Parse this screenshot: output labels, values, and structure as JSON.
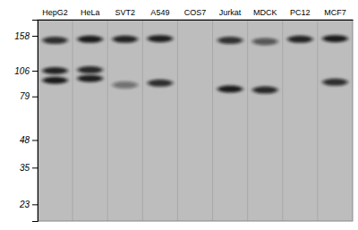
{
  "chart_data": {
    "type": "gel",
    "categories": [
      "HepG2",
      "HeLa",
      "SVT2",
      "A549",
      "COS7",
      "Jurkat",
      "MDCK",
      "PC12",
      "MCF7"
    ],
    "log": "y",
    "ylim": [
      19,
      190
    ],
    "yticks": [
      158,
      106,
      79,
      48,
      35,
      23
    ],
    "bands": [
      [
        {
          "mw": 150,
          "intensity": 0.82
        },
        {
          "mw": 106,
          "intensity": 0.88
        },
        {
          "mw": 95,
          "intensity": 0.92
        }
      ],
      [
        {
          "mw": 152,
          "intensity": 0.92
        },
        {
          "mw": 107,
          "intensity": 0.85
        },
        {
          "mw": 97,
          "intensity": 0.9
        }
      ],
      [
        {
          "mw": 152,
          "intensity": 0.88
        },
        {
          "mw": 90,
          "intensity": 0.45
        }
      ],
      [
        {
          "mw": 153,
          "intensity": 0.9
        },
        {
          "mw": 92,
          "intensity": 0.82
        }
      ],
      [],
      [
        {
          "mw": 150,
          "intensity": 0.8
        },
        {
          "mw": 86,
          "intensity": 0.92
        }
      ],
      [
        {
          "mw": 148,
          "intensity": 0.6
        },
        {
          "mw": 85,
          "intensity": 0.85
        }
      ],
      [
        {
          "mw": 152,
          "intensity": 0.88
        }
      ],
      [
        {
          "mw": 153,
          "intensity": 0.92
        },
        {
          "mw": 93,
          "intensity": 0.82
        }
      ]
    ]
  }
}
